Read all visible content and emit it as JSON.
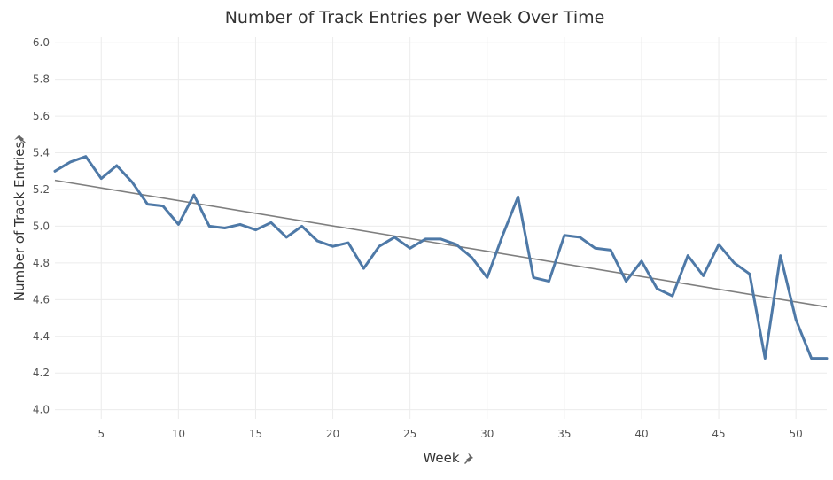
{
  "chart_data": {
    "type": "line",
    "title": "Number of Track Entries per Week Over Time",
    "xlabel": "Week",
    "ylabel": "Number of Track Entries",
    "xlim": [
      2,
      52
    ],
    "ylim": [
      3.95,
      6.03
    ],
    "x_ticks": [
      5,
      10,
      15,
      20,
      25,
      30,
      35,
      40,
      45,
      50
    ],
    "y_ticks": [
      4.0,
      4.2,
      4.4,
      4.6,
      4.8,
      5.0,
      5.2,
      5.4,
      5.6,
      5.8,
      6.0
    ],
    "grid": true,
    "series": [
      {
        "x": [
          2,
          3,
          4,
          5,
          6,
          7,
          8,
          9,
          10,
          11,
          12,
          13,
          14,
          15,
          16,
          17,
          18,
          19,
          20,
          21,
          22,
          23,
          24,
          25,
          26,
          27,
          28,
          29,
          30,
          31,
          32,
          33,
          34,
          35,
          36,
          37,
          38,
          39,
          40,
          41,
          42,
          43,
          44,
          45,
          46,
          47,
          48,
          49,
          50,
          51,
          52
        ],
        "values": [
          5.3,
          5.35,
          5.38,
          5.26,
          5.33,
          5.24,
          5.12,
          5.11,
          5.01,
          5.17,
          5.0,
          4.99,
          5.01,
          4.98,
          5.02,
          4.94,
          5.0,
          4.92,
          4.89,
          4.91,
          4.77,
          4.89,
          4.94,
          4.88,
          4.93,
          4.93,
          4.9,
          4.83,
          4.72,
          4.95,
          5.16,
          4.72,
          4.7,
          4.95,
          4.94,
          4.88,
          4.87,
          4.7,
          4.81,
          4.66,
          4.62,
          4.84,
          4.73,
          4.9,
          4.8,
          4.74,
          4.28,
          4.84,
          4.49,
          4.28,
          4.28
        ],
        "color": "#4e79a7"
      }
    ],
    "trend_line": {
      "x": [
        2,
        52
      ],
      "values": [
        5.25,
        4.56
      ],
      "color": "#7f7f7f"
    }
  }
}
